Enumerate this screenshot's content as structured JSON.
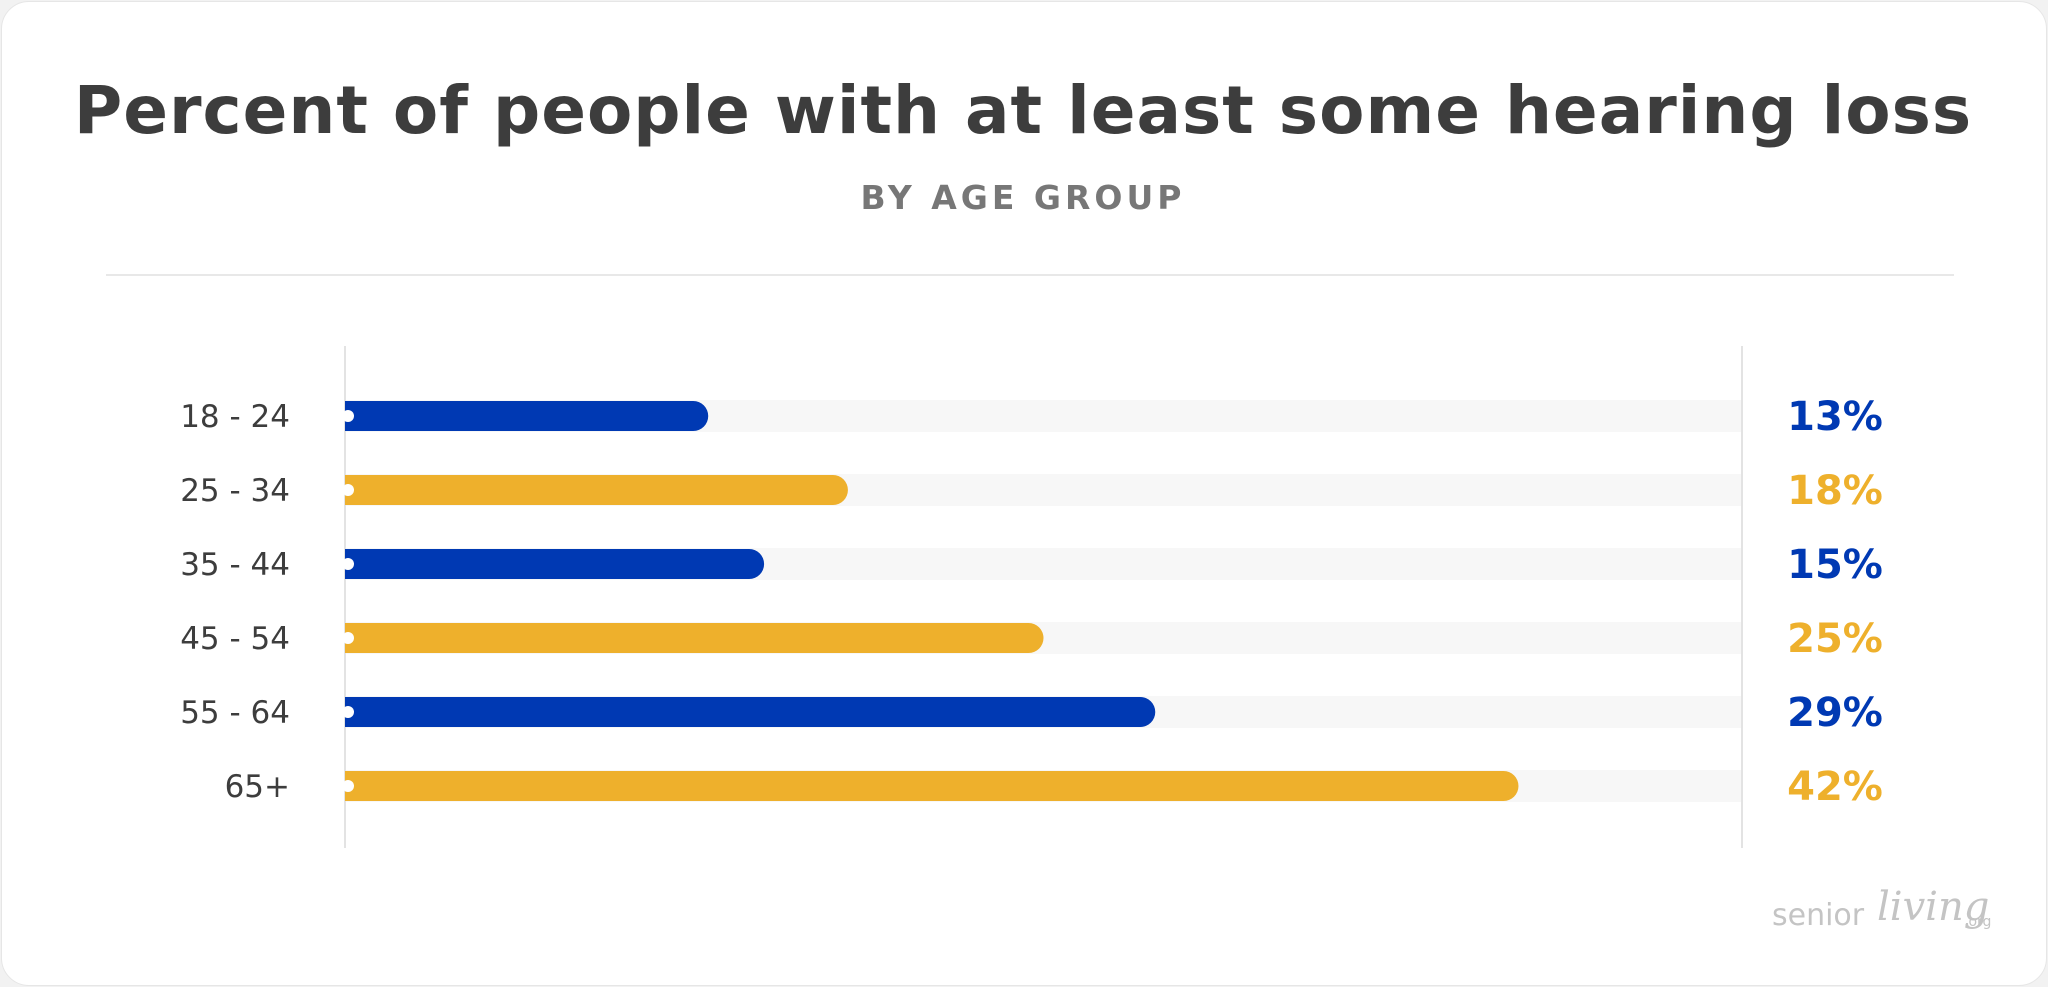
{
  "title": "Percent of people with at least some hearing loss",
  "subtitle": "BY AGE GROUP",
  "logo": {
    "part1": "senior",
    "part2": "living",
    "part3": ".org"
  },
  "colors": {
    "blue": "#0039b3",
    "gold": "#eeb02c",
    "track": "#f7f7f7",
    "axis": "#e3e3e3",
    "label": "#3d3d3d"
  },
  "chart_data": {
    "type": "bar",
    "orientation": "horizontal",
    "title": "Percent of people with at least some hearing loss",
    "subtitle": "BY AGE GROUP",
    "categories": [
      "18 - 24",
      "25 - 34",
      "35 - 44",
      "45 - 54",
      "55 - 64",
      "65+"
    ],
    "values": [
      13,
      18,
      15,
      25,
      29,
      42
    ],
    "value_labels": [
      "13%",
      "18%",
      "15%",
      "25%",
      "29%",
      "42%"
    ],
    "bar_colors": [
      "#0039b3",
      "#eeb02c",
      "#0039b3",
      "#eeb02c",
      "#0039b3",
      "#eeb02c"
    ],
    "xlim": [
      0,
      50
    ],
    "unit": "%",
    "grid": false,
    "legend": "none"
  }
}
